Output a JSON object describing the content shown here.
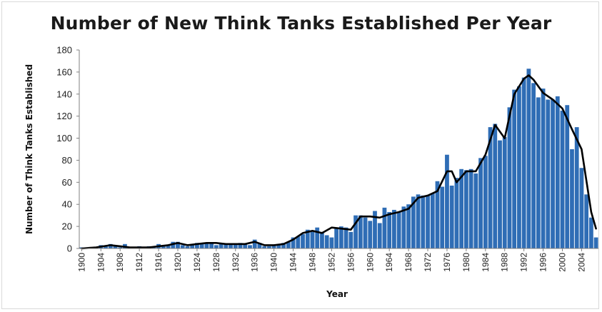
{
  "chart_data": {
    "type": "bar",
    "title": "Number of New Think Tanks Established Per Year",
    "xlabel": "Year",
    "ylabel": "Number of Think Tanks Established",
    "ylim": [
      0,
      180
    ],
    "yticks": [
      "0",
      "20",
      "40",
      "60",
      "80",
      "100",
      "120",
      "140",
      "160",
      "180"
    ],
    "xticks": [
      "1900",
      "1904",
      "1908",
      "1912",
      "1916",
      "1920",
      "1924",
      "1928",
      "1932",
      "1936",
      "1940",
      "1944",
      "1948",
      "1952",
      "1956",
      "1960",
      "1964",
      "1968",
      "1972",
      "1976",
      "1980",
      "1984",
      "1988",
      "1992",
      "1996",
      "2000",
      "2004"
    ],
    "grid": false,
    "legend": "none",
    "x_start": 1900,
    "x_end": 2007,
    "bar_color": "#2f6db5",
    "trend_color": "#000000",
    "series": [
      {
        "type": "bar",
        "x": [
          1900,
          1901,
          1902,
          1903,
          1904,
          1905,
          1906,
          1907,
          1908,
          1909,
          1910,
          1911,
          1912,
          1913,
          1914,
          1915,
          1916,
          1917,
          1918,
          1919,
          1920,
          1921,
          1922,
          1923,
          1924,
          1925,
          1926,
          1927,
          1928,
          1929,
          1930,
          1931,
          1932,
          1933,
          1934,
          1935,
          1936,
          1937,
          1938,
          1939,
          1940,
          1941,
          1942,
          1943,
          1944,
          1945,
          1946,
          1947,
          1948,
          1949,
          1950,
          1951,
          1952,
          1953,
          1954,
          1955,
          1956,
          1957,
          1958,
          1959,
          1960,
          1961,
          1962,
          1963,
          1964,
          1965,
          1966,
          1967,
          1968,
          1969,
          1970,
          1971,
          1972,
          1973,
          1974,
          1975,
          1976,
          1977,
          1978,
          1979,
          1980,
          1981,
          1982,
          1983,
          1984,
          1985,
          1986,
          1987,
          1988,
          1989,
          1990,
          1991,
          1992,
          1993,
          1994,
          1995,
          1996,
          1997,
          1998,
          1999,
          2000,
          2001,
          2002,
          2003,
          2004,
          2005,
          2006,
          2007
        ],
        "values": [
          1,
          1,
          1,
          0,
          3,
          2,
          4,
          2,
          1,
          4,
          1,
          0,
          2,
          0,
          2,
          1,
          4,
          2,
          3,
          6,
          6,
          3,
          2,
          3,
          5,
          5,
          5,
          5,
          3,
          4,
          4,
          4,
          4,
          5,
          4,
          3,
          8,
          5,
          2,
          2,
          3,
          4,
          5,
          6,
          10,
          11,
          13,
          17,
          15,
          19,
          15,
          12,
          10,
          19,
          20,
          19,
          15,
          30,
          30,
          28,
          25,
          34,
          23,
          37,
          33,
          35,
          33,
          38,
          40,
          47,
          49,
          48,
          48,
          50,
          61,
          56,
          85,
          57,
          64,
          72,
          71,
          72,
          68,
          82,
          84,
          110,
          113,
          98,
          101,
          128,
          144,
          147,
          155,
          163,
          150,
          137,
          145,
          135,
          135,
          138,
          125,
          130,
          90,
          110,
          73,
          49,
          28,
          10
        ]
      },
      {
        "type": "line",
        "name": "",
        "x": [
          1900,
          1903,
          1906,
          1908,
          1910,
          1912,
          1914,
          1916,
          1918,
          1920,
          1922,
          1924,
          1926,
          1928,
          1930,
          1932,
          1934,
          1936,
          1938,
          1940,
          1942,
          1944,
          1946,
          1948,
          1950,
          1952,
          1954,
          1956,
          1958,
          1960,
          1962,
          1964,
          1966,
          1968,
          1970,
          1972,
          1974,
          1976,
          1977,
          1978,
          1980,
          1982,
          1984,
          1986,
          1988,
          1990,
          1992,
          1993,
          1994,
          1996,
          1998,
          2000,
          2002,
          2004,
          2006,
          2007
        ],
        "values": [
          0,
          1,
          3,
          2,
          1,
          1,
          1,
          2,
          3,
          5,
          3,
          4,
          5,
          5,
          4,
          4,
          4,
          6,
          3,
          3,
          4,
          8,
          14,
          16,
          14,
          19,
          18,
          17,
          29,
          29,
          28,
          31,
          33,
          36,
          46,
          48,
          52,
          70,
          70,
          60,
          70,
          70,
          85,
          112,
          100,
          140,
          154,
          157,
          153,
          141,
          135,
          127,
          108,
          90,
          33,
          18
        ]
      }
    ]
  }
}
